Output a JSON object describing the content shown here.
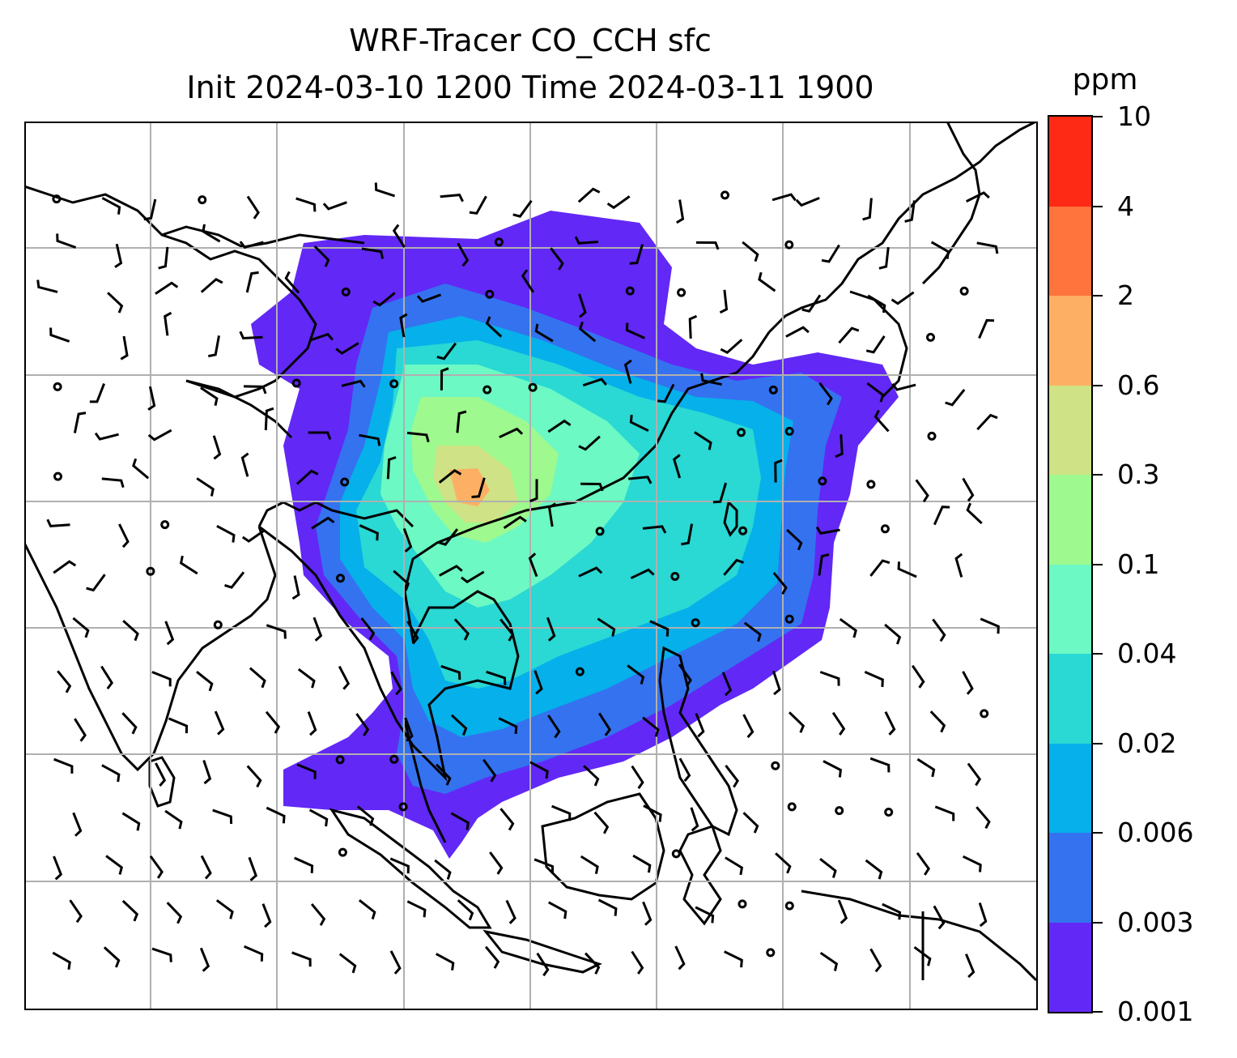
{
  "figure": {
    "title_line1": "WRF-Tracer CO_CCH sfc",
    "title_line2": "Init 2024-03-10 1200 Time 2024-03-11 1900"
  },
  "colorbar": {
    "unit": "ppm",
    "tick_labels": [
      "0.001",
      "0.003",
      "0.006",
      "0.02",
      "0.04",
      "0.1",
      "0.3",
      "0.6",
      "2",
      "4",
      "10"
    ],
    "colors": [
      "#6228f6",
      "#3472f0",
      "#06b0ea",
      "#2ad8d4",
      "#6cf9c3",
      "#9ef98e",
      "#cfe285",
      "#fdb064",
      "#ff733c",
      "#ff2a15"
    ]
  },
  "map": {
    "field": "CO_CCH surface concentration",
    "overlay": "wind barbs with calm-wind circles",
    "gridlines": true
  }
}
